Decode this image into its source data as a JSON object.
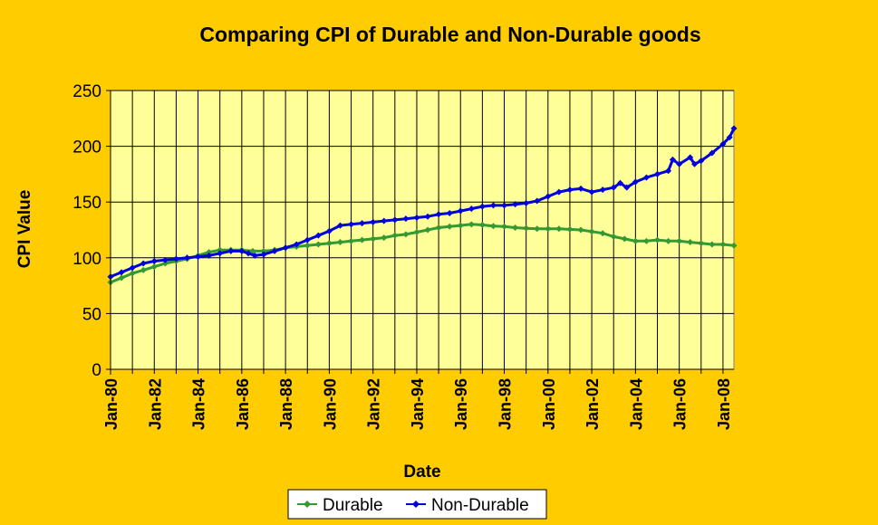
{
  "chart_data": {
    "type": "line",
    "title": "Comparing CPI of Durable and Non-Durable goods",
    "xlabel": "Date",
    "ylabel": "CPI Value",
    "ylim": [
      0,
      250
    ],
    "yticks": [
      0,
      50,
      100,
      150,
      200,
      250
    ],
    "xlim": [
      1980,
      2008.5
    ],
    "xticks": [
      {
        "value": 1980,
        "label": "Jan-80"
      },
      {
        "value": 1982,
        "label": "Jan-82"
      },
      {
        "value": 1984,
        "label": "Jan-84"
      },
      {
        "value": 1986,
        "label": "Jan-86"
      },
      {
        "value": 1988,
        "label": "Jan-88"
      },
      {
        "value": 1990,
        "label": "Jan-90"
      },
      {
        "value": 1992,
        "label": "Jan-92"
      },
      {
        "value": 1994,
        "label": "Jan-94"
      },
      {
        "value": 1996,
        "label": "Jan-96"
      },
      {
        "value": 1998,
        "label": "Jan-98"
      },
      {
        "value": 2000,
        "label": "Jan-00"
      },
      {
        "value": 2002,
        "label": "Jan-02"
      },
      {
        "value": 2004,
        "label": "Jan-04"
      },
      {
        "value": 2006,
        "label": "Jan-06"
      },
      {
        "value": 2008,
        "label": "Jan-08"
      }
    ],
    "grid": true,
    "legend_position": "bottom",
    "series": [
      {
        "name": "Durable",
        "color": "#339933",
        "points": [
          [
            1980,
            78
          ],
          [
            1980.5,
            82
          ],
          [
            1981,
            86
          ],
          [
            1981.5,
            89
          ],
          [
            1982,
            92
          ],
          [
            1982.5,
            95
          ],
          [
            1983,
            97
          ],
          [
            1983.5,
            99
          ],
          [
            1984,
            102
          ],
          [
            1984.5,
            105
          ],
          [
            1985,
            107
          ],
          [
            1985.5,
            107
          ],
          [
            1986,
            107
          ],
          [
            1986.5,
            106
          ],
          [
            1987,
            106
          ],
          [
            1987.5,
            107
          ],
          [
            1988,
            109
          ],
          [
            1988.5,
            110
          ],
          [
            1989,
            111
          ],
          [
            1989.5,
            112
          ],
          [
            1990,
            113
          ],
          [
            1990.5,
            114
          ],
          [
            1991,
            115
          ],
          [
            1991.5,
            116
          ],
          [
            1992,
            117
          ],
          [
            1992.5,
            118
          ],
          [
            1993,
            120
          ],
          [
            1993.5,
            121
          ],
          [
            1994,
            123
          ],
          [
            1994.5,
            125
          ],
          [
            1995,
            127
          ],
          [
            1995.5,
            128
          ],
          [
            1996,
            129
          ],
          [
            1996.5,
            130
          ],
          [
            1997,
            129.5
          ],
          [
            1997.5,
            128.5
          ],
          [
            1998,
            128
          ],
          [
            1998.5,
            127
          ],
          [
            1999,
            126.5
          ],
          [
            1999.5,
            126
          ],
          [
            2000,
            126
          ],
          [
            2000.5,
            126
          ],
          [
            2001,
            125.5
          ],
          [
            2001.5,
            125
          ],
          [
            2002,
            123.5
          ],
          [
            2002.5,
            122
          ],
          [
            2003,
            119
          ],
          [
            2003.5,
            117
          ],
          [
            2004,
            115
          ],
          [
            2004.5,
            115
          ],
          [
            2005,
            116
          ],
          [
            2005.5,
            115
          ],
          [
            2006,
            115
          ],
          [
            2006.5,
            114
          ],
          [
            2007,
            113
          ],
          [
            2007.5,
            112
          ],
          [
            2008,
            112
          ],
          [
            2008.5,
            111
          ]
        ]
      },
      {
        "name": "Non-Durable",
        "color": "#0000DD",
        "points": [
          [
            1980,
            83
          ],
          [
            1980.5,
            87
          ],
          [
            1981,
            91
          ],
          [
            1981.5,
            95
          ],
          [
            1982,
            97
          ],
          [
            1982.5,
            98
          ],
          [
            1983,
            99
          ],
          [
            1983.5,
            100
          ],
          [
            1984,
            101
          ],
          [
            1984.5,
            102
          ],
          [
            1985,
            104
          ],
          [
            1985.5,
            106
          ],
          [
            1986,
            106
          ],
          [
            1986.3,
            104
          ],
          [
            1986.6,
            102
          ],
          [
            1987,
            103
          ],
          [
            1987.5,
            106
          ],
          [
            1988,
            109
          ],
          [
            1988.5,
            112
          ],
          [
            1989,
            116
          ],
          [
            1989.5,
            120
          ],
          [
            1990,
            124
          ],
          [
            1990.5,
            129
          ],
          [
            1991,
            130
          ],
          [
            1991.5,
            131
          ],
          [
            1992,
            132
          ],
          [
            1992.5,
            133
          ],
          [
            1993,
            134
          ],
          [
            1993.5,
            135
          ],
          [
            1994,
            136
          ],
          [
            1994.5,
            137
          ],
          [
            1995,
            139
          ],
          [
            1995.5,
            140
          ],
          [
            1996,
            142
          ],
          [
            1996.5,
            144
          ],
          [
            1997,
            146
          ],
          [
            1997.5,
            147
          ],
          [
            1998,
            147
          ],
          [
            1998.5,
            148
          ],
          [
            1999,
            149
          ],
          [
            1999.5,
            151
          ],
          [
            2000,
            155
          ],
          [
            2000.5,
            159
          ],
          [
            2001,
            161
          ],
          [
            2001.5,
            162
          ],
          [
            2002,
            159
          ],
          [
            2002.5,
            161
          ],
          [
            2003,
            163
          ],
          [
            2003.3,
            167
          ],
          [
            2003.6,
            163
          ],
          [
            2004,
            168
          ],
          [
            2004.5,
            172
          ],
          [
            2005,
            175
          ],
          [
            2005.5,
            178
          ],
          [
            2005.7,
            188
          ],
          [
            2006,
            184
          ],
          [
            2006.5,
            190
          ],
          [
            2006.7,
            184
          ],
          [
            2007,
            187
          ],
          [
            2007.5,
            194
          ],
          [
            2008,
            202
          ],
          [
            2008.3,
            208
          ],
          [
            2008.5,
            216
          ]
        ]
      }
    ]
  }
}
